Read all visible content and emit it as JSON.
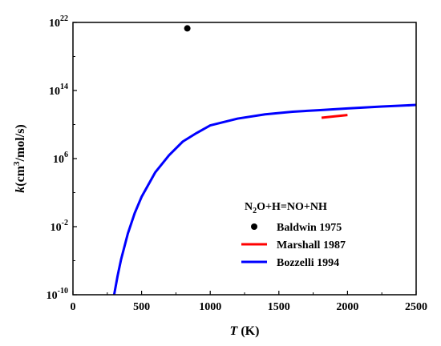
{
  "chart_data": {
    "type": "line",
    "title": "",
    "xlabel": {
      "italic": "T",
      "rest": " (K)"
    },
    "ylabel": {
      "italic": "k",
      "pre": "(cm",
      "sup": "3",
      "post": "/mol/s)"
    },
    "xlim": [
      0,
      2500
    ],
    "ylim_log10": [
      -10,
      22
    ],
    "yscale": "log",
    "x_ticks": [
      0,
      500,
      1000,
      1500,
      2000,
      2500
    ],
    "y_ticks": [
      {
        "base": "10",
        "exp": "22",
        "log10": 22
      },
      {
        "base": "10",
        "exp": "14",
        "log10": 14
      },
      {
        "base": "10",
        "exp": "6",
        "log10": 6
      },
      {
        "base": "10",
        "exp": "-2",
        "log10": -2
      },
      {
        "base": "10",
        "exp": "-10",
        "log10": -10
      }
    ],
    "legend": {
      "position": "bottom-right",
      "title": {
        "p1": "N",
        "sub": "2",
        "p2": "O+H=NO+NH"
      },
      "entries": [
        "Baldwin 1975",
        "Marshall 1987",
        "Bozzelli 1994"
      ]
    },
    "series": [
      {
        "name": "Baldwin 1975",
        "kind": "scatter",
        "color": "#000000",
        "points": [
          [
            833,
            2e+21
          ]
        ]
      },
      {
        "name": "Marshall 1987",
        "kind": "line",
        "color": "#ff0000",
        "points": [
          [
            1811,
            63000000000.0
          ],
          [
            1900,
            90000000000.0
          ],
          [
            2000,
            130000000000.0
          ]
        ]
      },
      {
        "name": "Bozzelli 1994",
        "kind": "line",
        "color": "#0000ff",
        "points": [
          [
            300,
            1e-10
          ],
          [
            325,
            1.6e-08
          ],
          [
            350,
            1.3e-06
          ],
          [
            400,
            0.0016
          ],
          [
            450,
            0.4
          ],
          [
            500,
            32
          ],
          [
            600,
            25000.0
          ],
          [
            700,
            2500000.0
          ],
          [
            800,
            100000000.0
          ],
          [
            900,
            1000000000.0
          ],
          [
            1000,
            7900000000.0
          ],
          [
            1200,
            50000000000.0
          ],
          [
            1400,
            160000000000.0
          ],
          [
            1600,
            320000000000.0
          ],
          [
            1800,
            500000000000.0
          ],
          [
            2000,
            790000000000.0
          ],
          [
            2250,
            1300000000000.0
          ],
          [
            2500,
            2000000000000.0
          ]
        ]
      }
    ]
  }
}
